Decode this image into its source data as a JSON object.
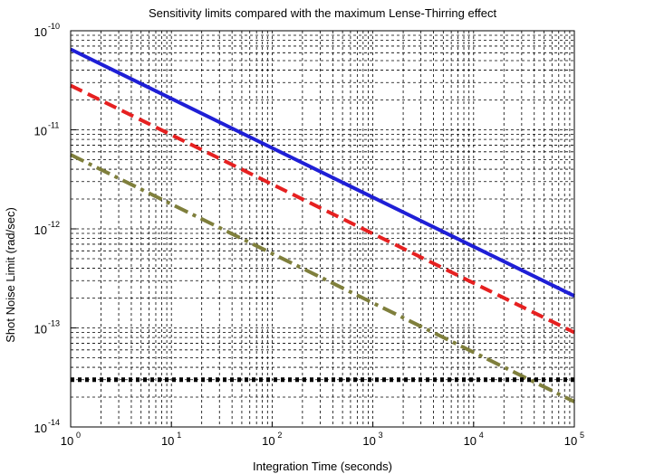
{
  "chart_data": {
    "type": "line",
    "title": "Sensitivity limits compared with the maximum Lense-Thirring effect",
    "xlabel": "Integration Time (seconds)",
    "ylabel": "Shot Noise Limit (rad/sec)",
    "xscale": "log",
    "yscale": "log",
    "xlim": [
      1,
      100000
    ],
    "ylim": [
      1e-14,
      1e-10
    ],
    "grid": "major and minor, dashed",
    "x_ticks": [
      {
        "base": "10",
        "exp": "0"
      },
      {
        "base": "10",
        "exp": "1"
      },
      {
        "base": "10",
        "exp": "2"
      },
      {
        "base": "10",
        "exp": "3"
      },
      {
        "base": "10",
        "exp": "4"
      },
      {
        "base": "10",
        "exp": "5"
      }
    ],
    "y_ticks": [
      {
        "base": "10",
        "exp": "-14"
      },
      {
        "base": "10",
        "exp": "-13"
      },
      {
        "base": "10",
        "exp": "-12"
      },
      {
        "base": "10",
        "exp": "-11"
      },
      {
        "base": "10",
        "exp": "-10"
      }
    ],
    "series": [
      {
        "color": "#1f1fd6",
        "style": "solid",
        "x": [
          1,
          100000
        ],
        "y": [
          6.5e-11,
          2.1e-13
        ]
      },
      {
        "color": "#e62020",
        "style": "dashed",
        "x": [
          1,
          100000
        ],
        "y": [
          2.8e-11,
          9e-14
        ]
      },
      {
        "color": "#7f7f3c",
        "style": "dash-dot",
        "x": [
          1,
          100000
        ],
        "y": [
          5.6e-12,
          1.8e-14
        ]
      },
      {
        "color": "#000000",
        "style": "dotted",
        "x": [
          1,
          100000
        ],
        "y": [
          3e-14,
          3e-14
        ]
      }
    ]
  }
}
